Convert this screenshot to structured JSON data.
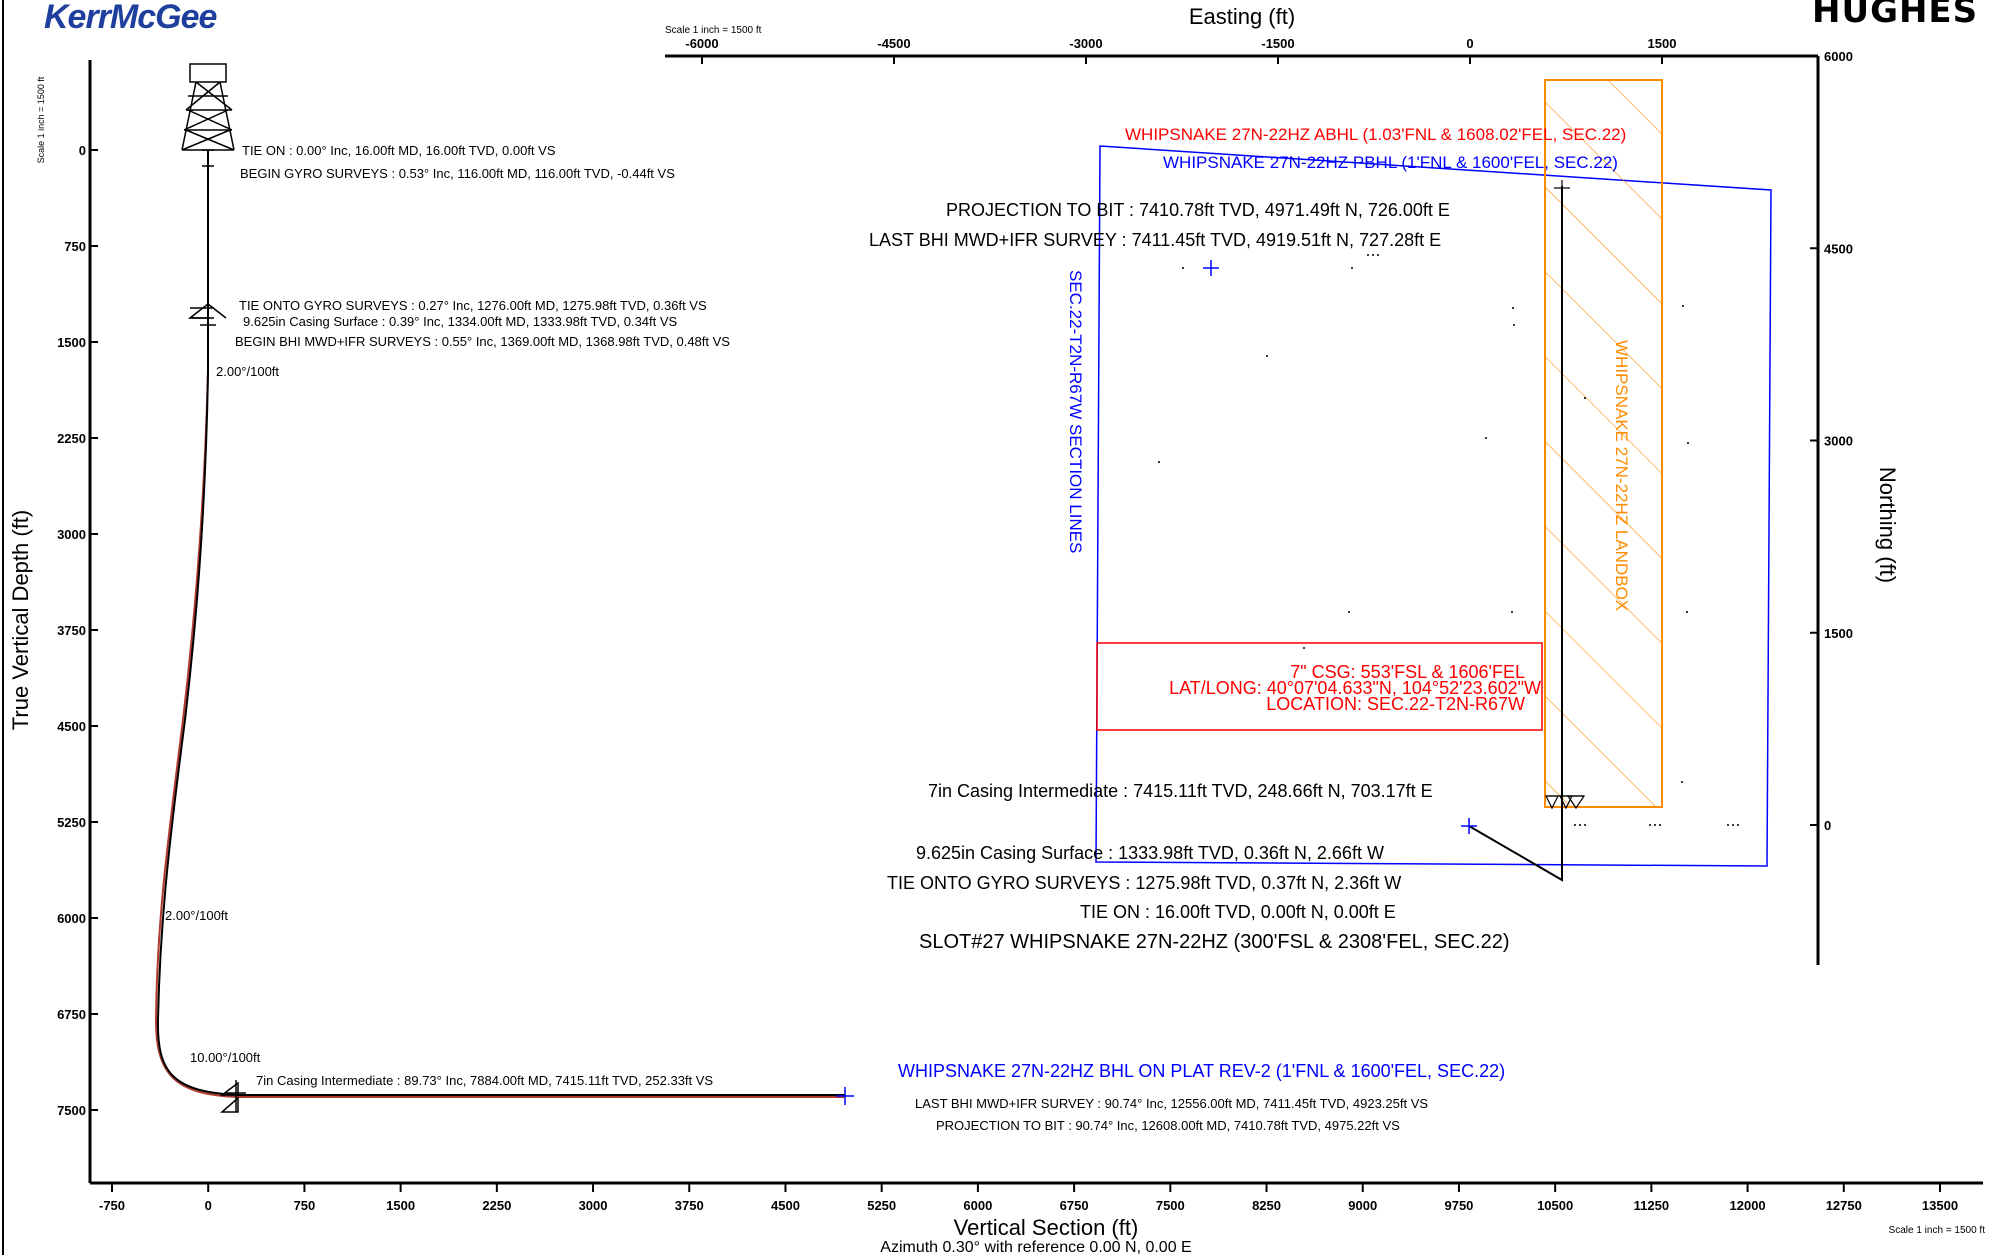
{
  "header": {
    "kerr_logo": "KerrMcGee",
    "hughes_logo": "HUGHES"
  },
  "vs_plot": {
    "y_axis_label": "True Vertical Depth (ft)",
    "x_axis_label": "Vertical Section (ft)",
    "azimuth_note": "Azimuth 0.30° with reference 0.00 N, 0.00 E",
    "scale_left": "Scale 1 inch = 1500 ft",
    "scale_bottom": "Scale 1 inch = 1500 ft",
    "y_ticks": [
      "0",
      "750",
      "1500",
      "2250",
      "3000",
      "3750",
      "4500",
      "5250",
      "6000",
      "6750",
      "7500"
    ],
    "x_ticks": [
      "-750",
      "0",
      "750",
      "1500",
      "2250",
      "3000",
      "3750",
      "4500",
      "5250",
      "6000",
      "6750",
      "7500",
      "8250",
      "9000",
      "9750",
      "10500",
      "11250",
      "12000",
      "12750",
      "13500"
    ],
    "annotations": {
      "tie_on": "TIE ON : 0.00° Inc, 16.00ft MD, 16.00ft TVD, 0.00ft VS",
      "begin_gyro": "BEGIN GYRO SURVEYS : 0.53° Inc, 116.00ft MD, 116.00ft TVD, -0.44ft VS",
      "tie_onto_gyro": "TIE ONTO GYRO SURVEYS : 0.27° Inc, 1276.00ft MD, 1275.98ft TVD, 0.36ft VS",
      "casing_surface": "9.625in Casing Surface : 0.39° Inc, 1334.00ft MD, 1333.98ft TVD, 0.34ft VS",
      "begin_bhi": "BEGIN BHI MWD+IFR SURVEYS : 0.55° Inc, 1369.00ft MD, 1368.98ft TVD, 0.48ft VS",
      "dls_1": "2.00°/100ft",
      "dls_2": "2.00°/100ft",
      "dls_3": "10.00°/100ft",
      "casing_intermediate": "7in Casing Intermediate : 89.73° Inc, 7884.00ft MD, 7415.11ft TVD, 252.33ft VS",
      "bhl_plat": "WHIPSNAKE 27N-22HZ BHL ON PLAT REV-2 (1'FNL & 1600'FEL, SEC.22)",
      "last_bhi": "LAST BHI MWD+IFR SURVEY : 90.74° Inc, 12556.00ft MD, 7411.45ft TVD, 4923.25ft VS",
      "projection": "PROJECTION TO BIT : 90.74° Inc, 12608.00ft MD, 7410.78ft TVD, 4975.22ft VS"
    }
  },
  "plan_view": {
    "top_axis_label": "Easting (ft)",
    "right_axis_label": "Northing (ft)",
    "scale_top": "Scale 1 inch = 1500 ft",
    "e_ticks": [
      "-6000",
      "-4500",
      "-3000",
      "-1500",
      "0",
      "1500"
    ],
    "n_ticks": [
      "6000",
      "4500",
      "3000",
      "1500",
      "0"
    ],
    "section_lines_label": "SEC.22-T2N-R67W SECTION LINES",
    "landbox_label": "WHIPSNAKE 27N-22HZ LANDBOX",
    "abhl": "WHIPSNAKE 27N-22HZ ABHL (1.03'FNL & 1608.02'FEL, SEC.22)",
    "pbhl": "WHIPSNAKE 27N-22HZ PBHL (1'FNL & 1600'FEL, SEC.22)",
    "projection": "PROJECTION TO BIT : 7410.78ft TVD, 4971.49ft N, 726.00ft E",
    "last_survey": "LAST BHI MWD+IFR SURVEY : 7411.45ft TVD, 4919.51ft N, 727.28ft E",
    "csg_info": [
      "7\" CSG: 553'FSL & 1606'FEL",
      "LAT/LONG: 40°07'04.633\"N, 104°52'23.602\"W",
      "LOCATION: SEC.22-T2N-R67W"
    ],
    "casing_intermediate": "7in Casing Intermediate : 7415.11ft TVD, 248.66ft N, 703.17ft E",
    "casing_surface": "9.625in Casing Surface : 1333.98ft TVD, 0.36ft N, 2.66ft W",
    "tie_onto_gyro": "TIE ONTO GYRO SURVEYS : 1275.98ft TVD, 0.37ft N, 2.36ft W",
    "tie_on": "TIE ON : 16.00ft TVD, 0.00ft N, 0.00ft E",
    "slot": "SLOT#27 WHIPSNAKE 27N-22HZ (300'FSL & 2308'FEL, SEC.22)"
  },
  "colors": {
    "section_lines": "#0000ff",
    "landbox": "#ff8c00",
    "targets": "#ff0000",
    "wellpath": "#000000",
    "plan_path": "#b03a2e"
  }
}
